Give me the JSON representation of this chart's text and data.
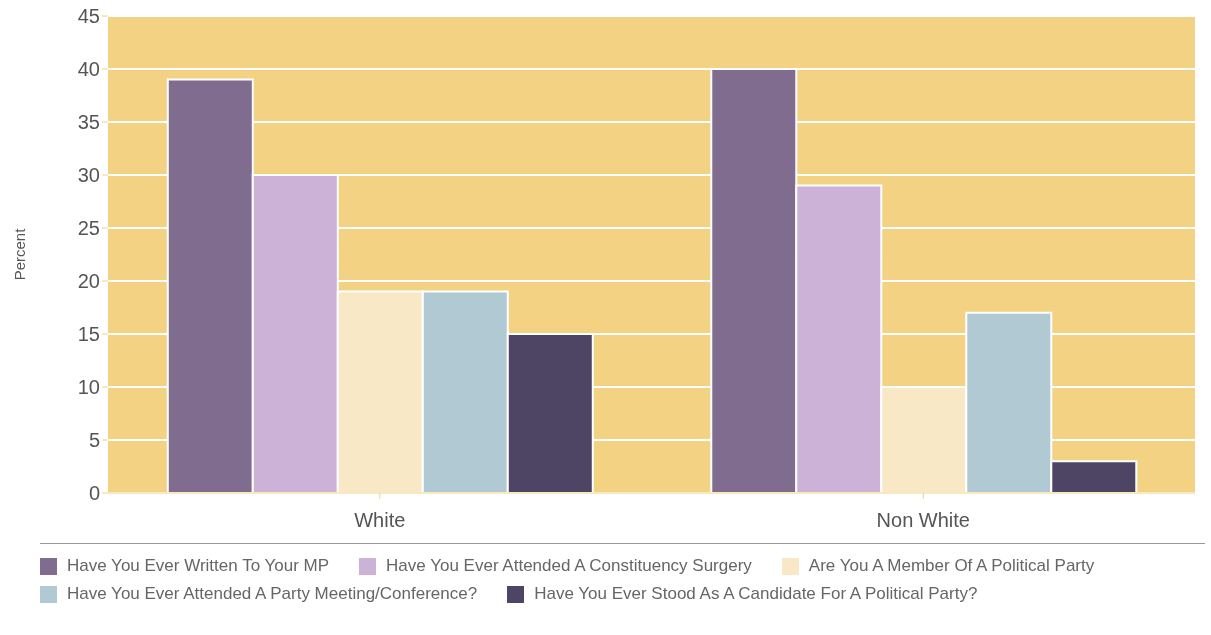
{
  "chart_data": {
    "type": "bar",
    "ylabel": "Percent",
    "categories": [
      "White",
      "Non White"
    ],
    "series": [
      {
        "name": "Have You Ever Written To Your MP",
        "color": "#806c8f",
        "values": [
          39,
          40
        ]
      },
      {
        "name": "Have You Ever Attended A Constituency Surgery",
        "color": "#cbb2d6",
        "values": [
          30,
          29
        ]
      },
      {
        "name": "Are You A Member Of A Political Party",
        "color": "#f9e8c6",
        "values": [
          19,
          10
        ]
      },
      {
        "name": "Have You Ever Attended A Party Meeting/Conference?",
        "color": "#b1c9d3",
        "values": [
          19,
          17
        ]
      },
      {
        "name": "Have You Ever Stood As A Candidate For A Political Party?",
        "color": "#4e4464",
        "values": [
          15,
          3
        ]
      }
    ],
    "ylim": [
      0,
      45
    ],
    "yticks": [
      0,
      5,
      10,
      15,
      20,
      25,
      30,
      35,
      40,
      45
    ],
    "grid": "y",
    "legend": "bottom"
  }
}
